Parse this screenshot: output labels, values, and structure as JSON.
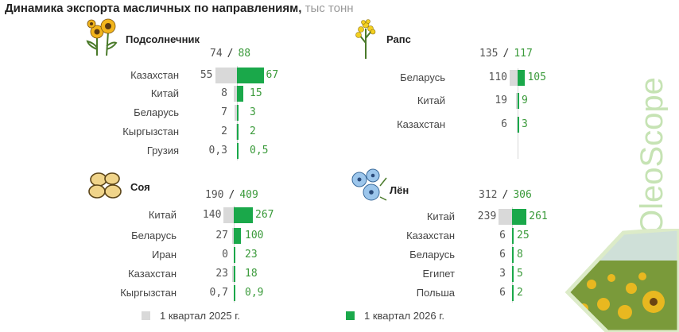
{
  "title": {
    "main": "Динамика экспорта масличных по направлениям,",
    "unit": "тыс тонн"
  },
  "colors": {
    "y2025": "#d9d9d9",
    "y2026": "#1aa84a",
    "value2026": "#3a9a3a",
    "brand": "#c6e3b4"
  },
  "brand": "OleoScope",
  "legend": {
    "y2025": "1 квартал 2025 г.",
    "y2026": "1 квартал 2026 г."
  },
  "chart_data": [
    {
      "type": "bar",
      "title": "Подсолнечник",
      "icon": "sunflower-icon",
      "total": {
        "y2025": "74",
        "y2026": "88"
      },
      "categories": [
        "Казахстан",
        "Китай",
        "Беларусь",
        "Кыргызстан",
        "Грузия"
      ],
      "labels2025": [
        "55",
        "8",
        "7",
        "2",
        "0,3"
      ],
      "labels2026": [
        "67",
        "15",
        "3",
        "2",
        "0,5"
      ],
      "series": [
        {
          "name": "1 квартал 2025 г.",
          "values": [
            55,
            8,
            7,
            2,
            0.3
          ]
        },
        {
          "name": "1 квартал 2026 г.",
          "values": [
            67,
            15,
            3,
            2,
            0.5
          ]
        }
      ]
    },
    {
      "type": "bar",
      "title": "Рапс",
      "icon": "rapeseed-icon",
      "total": {
        "y2025": "135",
        "y2026": "117"
      },
      "categories": [
        "Беларусь",
        "Китай",
        "Казахстан"
      ],
      "labels2025": [
        "110",
        "19",
        "6"
      ],
      "labels2026": [
        "105",
        "9",
        "3"
      ],
      "series": [
        {
          "name": "1 квартал 2025 г.",
          "values": [
            110,
            19,
            6
          ]
        },
        {
          "name": "1 квартал 2026 г.",
          "values": [
            105,
            9,
            3
          ]
        }
      ]
    },
    {
      "type": "bar",
      "title": "Соя",
      "icon": "soybean-icon",
      "total": {
        "y2025": "190",
        "y2026": "409"
      },
      "categories": [
        "Китай",
        "Беларусь",
        "Иран",
        "Казахстан",
        "Кыргызстан"
      ],
      "labels2025": [
        "140",
        "27",
        "0",
        "23",
        "0,7"
      ],
      "labels2026": [
        "267",
        "100",
        "23",
        "18",
        "0,9"
      ],
      "series": [
        {
          "name": "1 квартал 2025 г.",
          "values": [
            140,
            27,
            0,
            23,
            0.7
          ]
        },
        {
          "name": "1 квартал 2026 г.",
          "values": [
            267,
            100,
            23,
            18,
            0.9
          ]
        }
      ]
    },
    {
      "type": "bar",
      "title": "Лён",
      "icon": "flax-icon",
      "total": {
        "y2025": "312",
        "y2026": "306"
      },
      "categories": [
        "Китай",
        "Казахстан",
        "Беларусь",
        "Египет",
        "Польша"
      ],
      "labels2025": [
        "239",
        "6",
        "6",
        "3",
        "6"
      ],
      "labels2026": [
        "261",
        "25",
        "8",
        "5",
        "2"
      ],
      "series": [
        {
          "name": "1 квартал 2025 г.",
          "values": [
            239,
            6,
            6,
            3,
            6
          ]
        },
        {
          "name": "1 квартал 2026 г.",
          "values": [
            261,
            25,
            8,
            5,
            2
          ]
        }
      ]
    }
  ]
}
